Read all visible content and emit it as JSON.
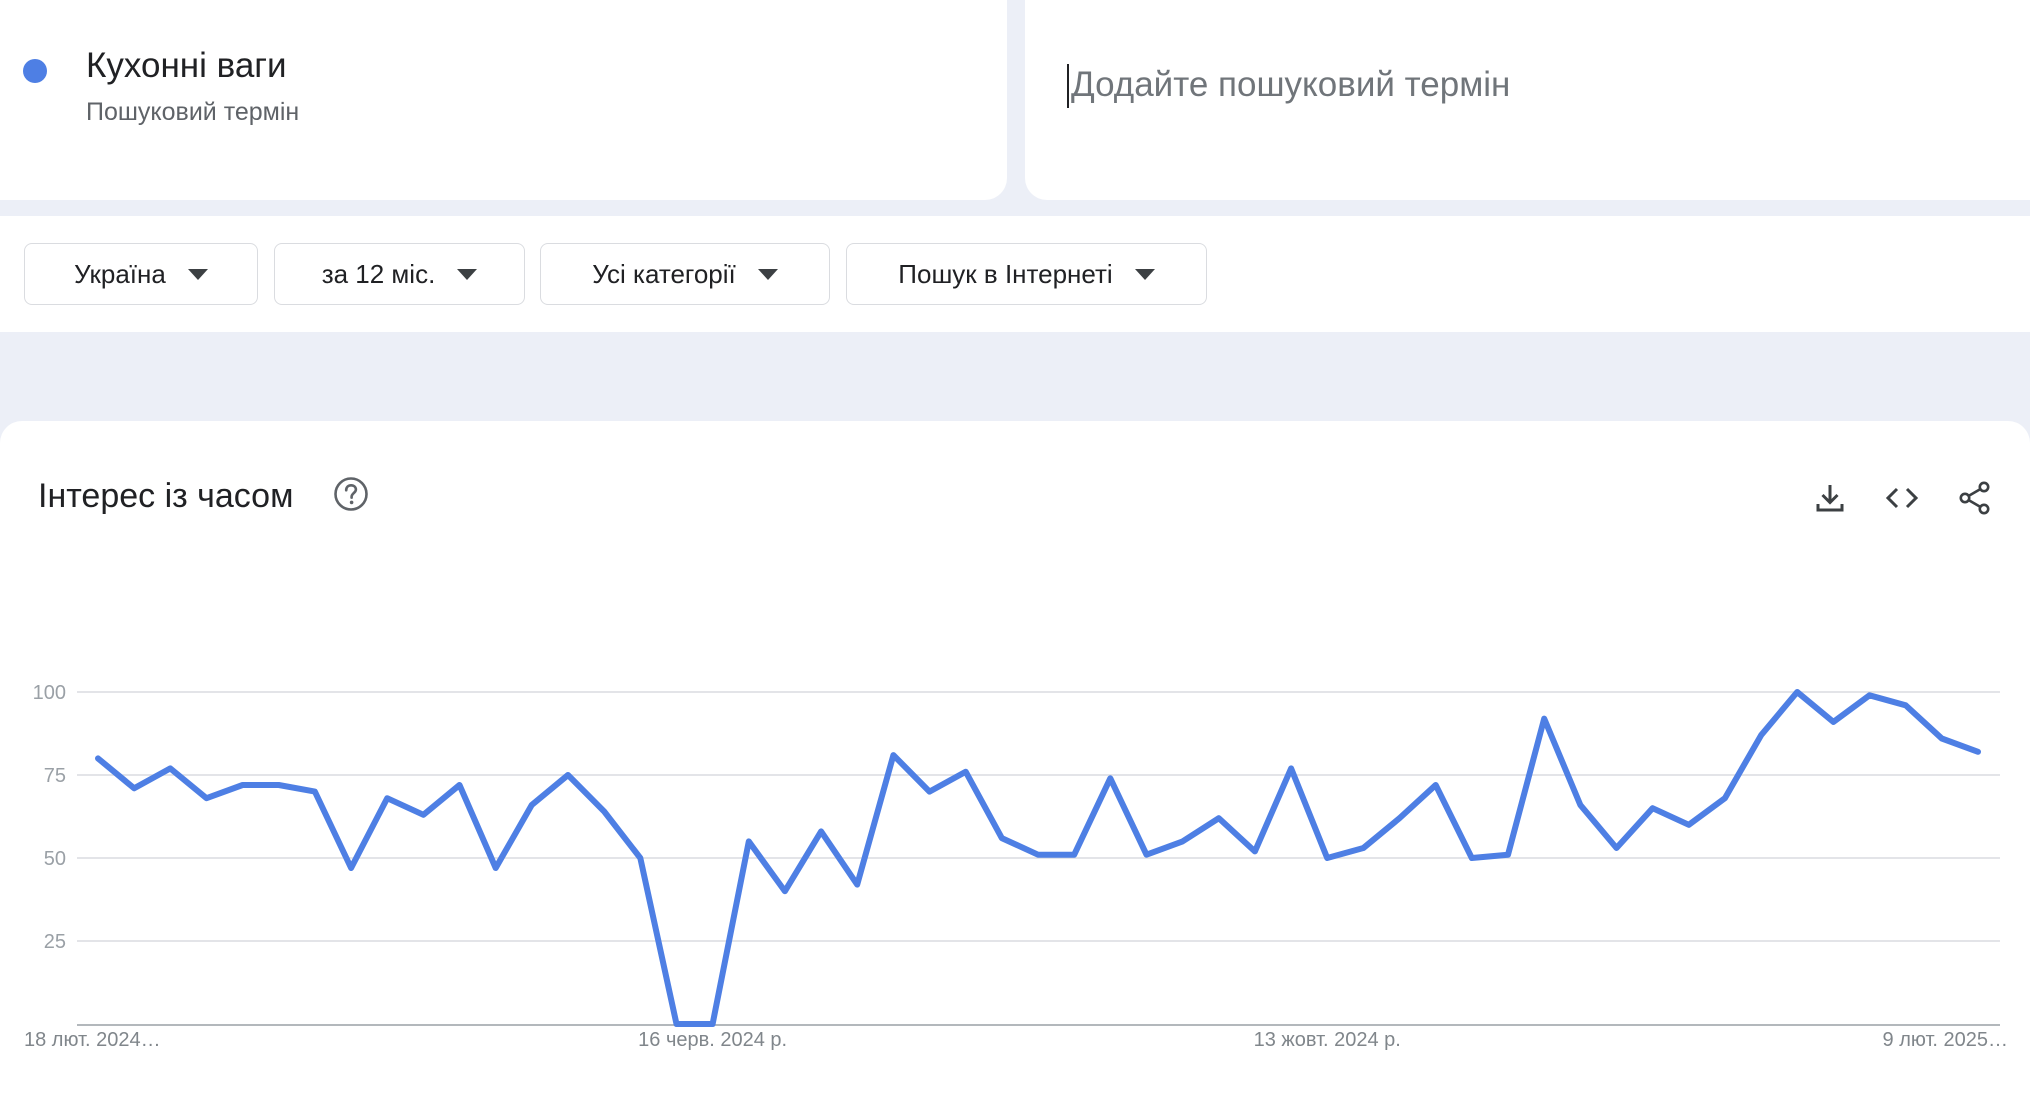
{
  "term": {
    "title": "Кухонні ваги",
    "subtitle": "Пошуковий термін",
    "color": "#4e7fe4"
  },
  "add_term": {
    "placeholder": "Додайте пошуковий термін"
  },
  "filters": [
    {
      "label": "Україна"
    },
    {
      "label": "за 12 міс."
    },
    {
      "label": "Усі категорії"
    },
    {
      "label": "Пошук в Інтернеті"
    }
  ],
  "chart_section": {
    "title": "Інтерес із часом",
    "icons": [
      "help-icon",
      "download-icon",
      "embed-code-icon",
      "share-icon"
    ]
  },
  "chart_data": {
    "type": "line",
    "title": "",
    "xlabel": "",
    "ylabel": "",
    "ylim": [
      0,
      100
    ],
    "yticks": [
      25,
      50,
      75,
      100
    ],
    "grid": true,
    "x_tick_labels": [
      {
        "index": 0,
        "label": "18 лют. 2024…"
      },
      {
        "index": 17,
        "label": "16 черв. 2024 р."
      },
      {
        "index": 34,
        "label": "13 жовт. 2024 р."
      },
      {
        "index": 51,
        "label": "9 лют. 2025…"
      }
    ],
    "series": [
      {
        "name": "Кухонні ваги",
        "color": "#4e7fe4",
        "values": [
          80,
          71,
          77,
          68,
          72,
          72,
          70,
          47,
          68,
          63,
          72,
          47,
          66,
          75,
          64,
          50,
          0,
          0,
          55,
          40,
          58,
          42,
          81,
          70,
          76,
          56,
          51,
          51,
          74,
          51,
          55,
          62,
          52,
          77,
          50,
          53,
          62,
          72,
          50,
          51,
          92,
          66,
          53,
          65,
          60,
          68,
          87,
          100,
          91,
          99,
          96,
          86,
          82
        ]
      }
    ]
  }
}
